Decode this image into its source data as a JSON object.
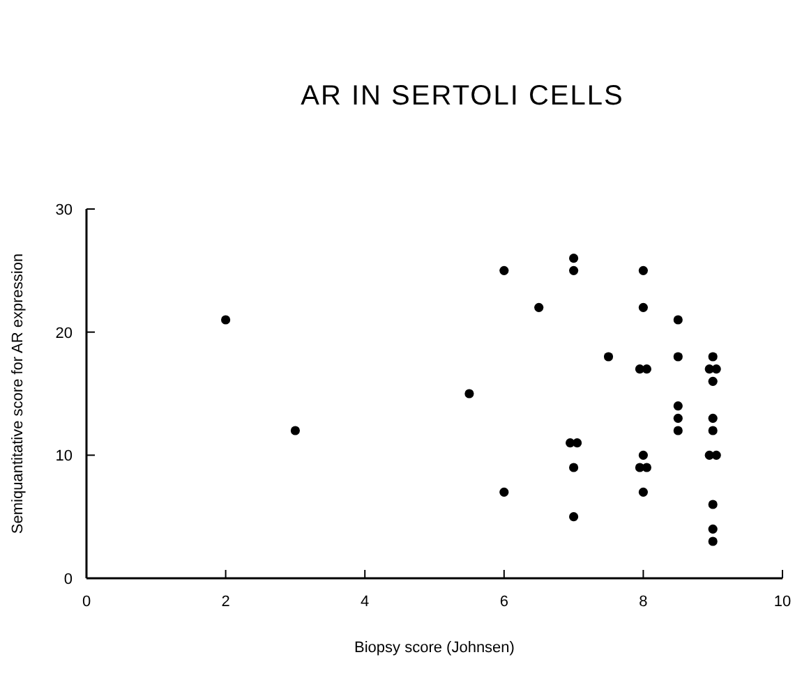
{
  "chart_data": {
    "type": "scatter",
    "title": "AR IN SERTOLI CELLS",
    "xlabel": "Biopsy score (Johnsen)",
    "ylabel": "Semiquantitative score for AR expression",
    "x": [
      2,
      3,
      5.5,
      6,
      6,
      6.5,
      7,
      7,
      6.95,
      7.05,
      7,
      7,
      7.5,
      7.95,
      8.05,
      8,
      8,
      8,
      7.95,
      8.05,
      8,
      8.5,
      8.5,
      8.5,
      8.5,
      8.5,
      8.95,
      9.05,
      9,
      9,
      9,
      9,
      8.95,
      9.05,
      9,
      9,
      9
    ],
    "values": [
      21,
      12,
      15,
      25,
      7,
      22,
      26,
      25,
      11,
      11,
      9,
      5,
      18,
      17,
      17,
      25,
      22,
      10,
      9,
      9,
      7,
      21,
      18,
      14,
      13,
      12,
      17,
      17,
      18,
      16,
      13,
      12,
      10,
      10,
      6,
      4,
      3
    ],
    "color": "#000000",
    "marker": "circle",
    "xlim": [
      0,
      10
    ],
    "xticks": [
      0,
      2,
      4,
      6,
      8,
      10
    ],
    "ylim": [
      0,
      30
    ],
    "yticks": [
      0,
      10,
      20,
      30
    ],
    "grid": false
  }
}
